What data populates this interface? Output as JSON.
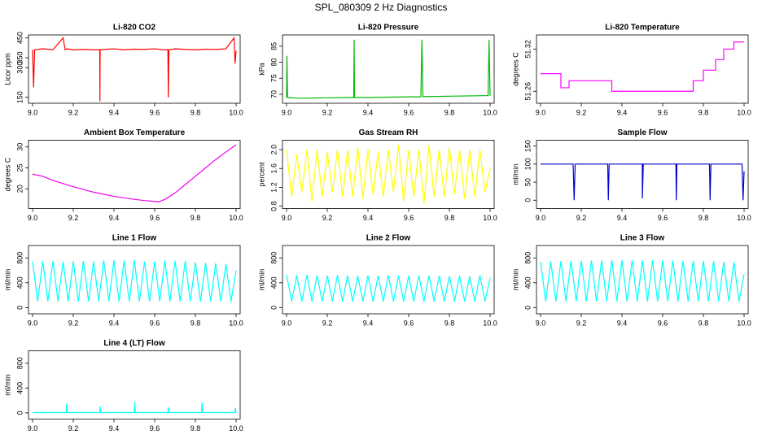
{
  "title": "SPL_080309  2 Hz Diagnostics",
  "chart_data": [
    {
      "type": "line",
      "title": "Li-820 CO2",
      "y_label": "Licor ppm",
      "color": "#ff0000",
      "x": [
        9.0,
        9.005,
        9.01,
        9.05,
        9.1,
        9.15,
        9.16,
        9.17,
        9.2,
        9.25,
        9.3,
        9.33,
        9.331,
        9.332,
        9.35,
        9.4,
        9.45,
        9.5,
        9.55,
        9.6,
        9.65,
        9.665,
        9.667,
        9.67,
        9.7,
        9.75,
        9.8,
        9.85,
        9.9,
        9.95,
        9.99,
        9.995,
        10.0
      ],
      "values": [
        390,
        200,
        390,
        395,
        390,
        450,
        390,
        395,
        390,
        392,
        390,
        390,
        130,
        390,
        392,
        395,
        390,
        393,
        392,
        395,
        390,
        390,
        150,
        390,
        395,
        392,
        390,
        393,
        392,
        395,
        450,
        320,
        385
      ],
      "xlim": [
        8.98,
        10.02
      ],
      "xticks": [
        {
          "value": 9,
          "label": "9.0"
        },
        9.2,
        9.4,
        9.6,
        9.8,
        {
          "value": 10,
          "label": "10.0"
        }
      ],
      "ylim": [
        120,
        465
      ],
      "yticks": [
        150,
        300,
        350,
        450
      ]
    },
    {
      "type": "line",
      "title": "Li-820 Pressure",
      "y_label": "kPa",
      "color": "#00bb00",
      "x": [
        9.0,
        9.002,
        9.005,
        9.05,
        9.1,
        9.2,
        9.3,
        9.33,
        9.332,
        9.334,
        9.4,
        9.5,
        9.6,
        9.66,
        9.665,
        9.67,
        9.7,
        9.8,
        9.9,
        9.99,
        9.995,
        10.0
      ],
      "values": [
        69,
        82,
        69,
        68.8,
        68.8,
        68.9,
        69,
        69,
        87,
        69,
        69,
        69.1,
        69.2,
        69.2,
        87,
        69.3,
        69.3,
        69.4,
        69.5,
        69.6,
        87,
        69.5
      ],
      "xlim": [
        8.98,
        10.02
      ],
      "xticks": [
        {
          "value": 9,
          "label": "9.0"
        },
        9.2,
        9.4,
        9.6,
        9.8,
        {
          "value": 10,
          "label": "10.0"
        }
      ],
      "ylim": [
        67.2,
        88.5
      ],
      "yticks": [
        70,
        75,
        80,
        85
      ]
    },
    {
      "type": "line",
      "title": "Li-820 Temperature",
      "y_label": "degrees C",
      "color": "#ff00ff",
      "x": [
        9.0,
        9.1,
        9.1,
        9.14,
        9.14,
        9.35,
        9.35,
        9.75,
        9.75,
        9.8,
        9.8,
        9.86,
        9.86,
        9.9,
        9.9,
        9.95,
        9.95,
        10.0
      ],
      "values": [
        51.285,
        51.285,
        51.265,
        51.265,
        51.275,
        51.275,
        51.26,
        51.26,
        51.275,
        51.275,
        51.29,
        51.29,
        51.305,
        51.305,
        51.32,
        51.32,
        51.33,
        51.33
      ],
      "xlim": [
        8.98,
        10.02
      ],
      "xticks": [
        {
          "value": 9,
          "label": "9.0"
        },
        9.2,
        9.4,
        9.6,
        9.8,
        {
          "value": 10,
          "label": "10.0"
        }
      ],
      "ylim": [
        51.243,
        51.34
      ],
      "yticks": [
        51.26,
        51.32
      ]
    },
    {
      "type": "line",
      "title": "Ambient Box Temperature",
      "y_label": "degrees C",
      "color": "#ee00ee",
      "x": [
        9.0,
        9.05,
        9.1,
        9.2,
        9.3,
        9.4,
        9.5,
        9.55,
        9.6,
        9.62,
        9.65,
        9.7,
        9.75,
        9.8,
        9.85,
        9.9,
        9.95,
        10.0
      ],
      "values": [
        23.5,
        23,
        22,
        20.5,
        19.2,
        18.2,
        17.5,
        17.2,
        17,
        16.9,
        17.5,
        19,
        21,
        23,
        25,
        27,
        28.8,
        30.5
      ],
      "xlim": [
        8.98,
        10.02
      ],
      "xticks": [
        {
          "value": 9,
          "label": "9.0"
        },
        9.2,
        9.4,
        9.6,
        9.8,
        {
          "value": 10,
          "label": "10.0"
        }
      ],
      "ylim": [
        15.3,
        31.6
      ],
      "yticks": [
        20,
        25,
        30
      ]
    },
    {
      "type": "line",
      "title": "Gas Stream RH",
      "y_label": "percent",
      "color": "#ffff00",
      "x": [
        9,
        9.025,
        9.05,
        9.075,
        9.1,
        9.125,
        9.15,
        9.175,
        9.2,
        9.225,
        9.25,
        9.275,
        9.3,
        9.325,
        9.35,
        9.375,
        9.4,
        9.425,
        9.45,
        9.475,
        9.5,
        9.525,
        9.55,
        9.575,
        9.6,
        9.625,
        9.65,
        9.675,
        9.7,
        9.725,
        9.75,
        9.775,
        9.8,
        9.825,
        9.85,
        9.875,
        9.9,
        9.925,
        9.95,
        9.975,
        10
      ],
      "values": [
        2.0,
        1.0,
        1.9,
        1.1,
        2.0,
        0.9,
        2.0,
        1.0,
        1.95,
        1.1,
        2.0,
        1.0,
        2.0,
        1.0,
        2.05,
        0.95,
        2.0,
        1.05,
        1.95,
        1.0,
        2.0,
        1.1,
        2.1,
        0.9,
        2.0,
        1.0,
        2.0,
        0.85,
        2.1,
        1.0,
        2.0,
        1.0,
        2.05,
        1.05,
        2.0,
        0.95,
        2.0,
        1.0,
        2.0,
        1.1,
        1.6
      ],
      "xlim": [
        8.98,
        10.02
      ],
      "xticks": [
        {
          "value": 9,
          "label": "9.0"
        },
        9.2,
        9.4,
        9.6,
        9.8,
        {
          "value": 10,
          "label": "10.0"
        }
      ],
      "ylim": [
        0.75,
        2.2
      ],
      "yticks": [
        0.8,
        1.2,
        1.6,
        {
          "value": 2,
          "label": "2.0"
        }
      ]
    },
    {
      "type": "line",
      "title": "Sample Flow",
      "y_label": "ml/min",
      "color": "#0000cc",
      "x": [
        9.0,
        9.16,
        9.165,
        9.17,
        9.33,
        9.333,
        9.337,
        9.5,
        9.5,
        9.505,
        9.665,
        9.667,
        9.67,
        9.83,
        9.833,
        9.837,
        9.99,
        9.995,
        10.0
      ],
      "values": [
        100,
        100,
        0,
        100,
        100,
        0,
        100,
        100,
        5,
        100,
        100,
        0,
        100,
        100,
        0,
        100,
        100,
        0,
        80
      ],
      "xlim": [
        8.98,
        10.02
      ],
      "xticks": [
        {
          "value": 9,
          "label": "9.0"
        },
        9.2,
        9.4,
        9.6,
        9.8,
        {
          "value": 10,
          "label": "10.0"
        }
      ],
      "ylim": [
        -23,
        166
      ],
      "yticks": [
        0,
        50,
        100,
        150
      ]
    },
    {
      "type": "line",
      "title": "Line 1 Flow",
      "y_label": "ml/min",
      "color": "#00ffff",
      "x": [
        9,
        9.025,
        9.05,
        9.075,
        9.1,
        9.125,
        9.15,
        9.175,
        9.2,
        9.225,
        9.25,
        9.275,
        9.3,
        9.325,
        9.35,
        9.375,
        9.4,
        9.425,
        9.45,
        9.475,
        9.5,
        9.525,
        9.55,
        9.575,
        9.6,
        9.625,
        9.65,
        9.675,
        9.7,
        9.725,
        9.75,
        9.775,
        9.8,
        9.825,
        9.85,
        9.875,
        9.9,
        9.925,
        9.95,
        9.975,
        10
      ],
      "values": [
        740,
        100,
        745,
        100,
        750,
        100,
        740,
        100,
        745,
        100,
        750,
        100,
        745,
        100,
        760,
        100,
        765,
        100,
        760,
        100,
        765,
        100,
        740,
        100,
        745,
        100,
        760,
        100,
        755,
        100,
        750,
        100,
        730,
        100,
        720,
        100,
        715,
        100,
        705,
        100,
        600
      ],
      "xlim": [
        8.98,
        10.02
      ],
      "xticks": [
        {
          "value": 9,
          "label": "9.0"
        },
        9.2,
        9.4,
        9.6,
        9.8,
        {
          "value": 10,
          "label": "10.0"
        }
      ],
      "ylim": [
        -100,
        1000
      ],
      "yticks": [
        0,
        400,
        800
      ]
    },
    {
      "type": "line",
      "title": "Line 2 Flow",
      "y_label": "ml/min",
      "color": "#00ffff",
      "x": [
        9,
        9.025,
        9.05,
        9.075,
        9.1,
        9.125,
        9.15,
        9.175,
        9.2,
        9.225,
        9.25,
        9.275,
        9.3,
        9.325,
        9.35,
        9.375,
        9.4,
        9.425,
        9.45,
        9.475,
        9.5,
        9.525,
        9.55,
        9.575,
        9.6,
        9.625,
        9.65,
        9.675,
        9.7,
        9.725,
        9.75,
        9.775,
        9.8,
        9.825,
        9.85,
        9.875,
        9.9,
        9.925,
        9.95,
        9.975,
        10
      ],
      "values": [
        530,
        100,
        520,
        100,
        525,
        100,
        520,
        100,
        515,
        100,
        520,
        100,
        515,
        100,
        510,
        100,
        520,
        100,
        515,
        100,
        520,
        100,
        515,
        100,
        510,
        100,
        520,
        100,
        515,
        100,
        510,
        100,
        505,
        100,
        510,
        100,
        505,
        100,
        520,
        100,
        480
      ],
      "xlim": [
        8.98,
        10.02
      ],
      "xticks": [
        {
          "value": 9,
          "label": "9.0"
        },
        9.2,
        9.4,
        9.6,
        9.8,
        {
          "value": 10,
          "label": "10.0"
        }
      ],
      "ylim": [
        -100,
        1000
      ],
      "yticks": [
        0,
        400,
        800
      ]
    },
    {
      "type": "line",
      "title": "Line 3 Flow",
      "y_label": "ml/min",
      "color": "#00ffff",
      "x": [
        9,
        9.025,
        9.05,
        9.075,
        9.1,
        9.125,
        9.15,
        9.175,
        9.2,
        9.225,
        9.25,
        9.275,
        9.3,
        9.325,
        9.35,
        9.375,
        9.4,
        9.425,
        9.45,
        9.475,
        9.5,
        9.525,
        9.55,
        9.575,
        9.6,
        9.625,
        9.65,
        9.675,
        9.7,
        9.725,
        9.75,
        9.775,
        9.8,
        9.825,
        9.85,
        9.875,
        9.9,
        9.925,
        9.95,
        9.975,
        10
      ],
      "values": [
        740,
        100,
        745,
        100,
        750,
        100,
        755,
        100,
        755,
        100,
        760,
        100,
        760,
        100,
        765,
        100,
        765,
        100,
        760,
        100,
        760,
        100,
        765,
        100,
        760,
        100,
        760,
        100,
        755,
        100,
        750,
        100,
        750,
        100,
        745,
        100,
        740,
        100,
        735,
        100,
        540
      ],
      "xlim": [
        8.98,
        10.02
      ],
      "xticks": [
        {
          "value": 9,
          "label": "9.0"
        },
        9.2,
        9.4,
        9.6,
        9.8,
        {
          "value": 10,
          "label": "10.0"
        }
      ],
      "ylim": [
        -100,
        1000
      ],
      "yticks": [
        0,
        400,
        800
      ]
    },
    {
      "type": "line",
      "title": "Line 4 (LT) Flow",
      "y_label": "ml/min",
      "color": "#00ffff",
      "x": [
        9.0,
        9.165,
        9.167,
        9.17,
        9.33,
        9.333,
        9.337,
        9.5,
        9.502,
        9.505,
        9.665,
        9.667,
        9.67,
        9.83,
        9.833,
        9.837,
        9.995,
        9.997,
        10.0
      ],
      "values": [
        5,
        5,
        150,
        5,
        5,
        100,
        5,
        5,
        180,
        5,
        5,
        90,
        5,
        5,
        170,
        5,
        5,
        80,
        5
      ],
      "xlim": [
        8.98,
        10.02
      ],
      "xticks": [
        {
          "value": 9,
          "label": "9.0"
        },
        9.2,
        9.4,
        9.6,
        9.8,
        {
          "value": 10,
          "label": "10.0"
        }
      ],
      "ylim": [
        -100,
        1000
      ],
      "yticks": [
        0,
        400,
        800
      ]
    }
  ]
}
